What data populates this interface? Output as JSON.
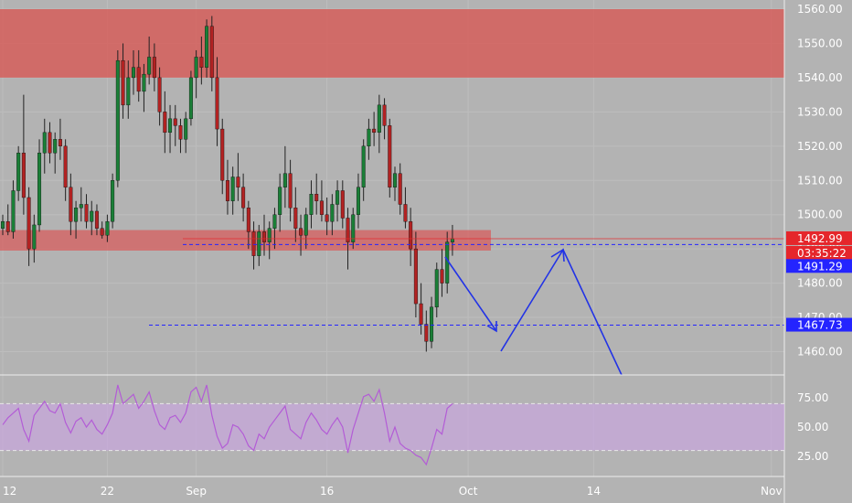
{
  "chart_data": {
    "type": "candlestick",
    "price_axis": {
      "ticks": [
        "1560.00",
        "1550.00",
        "1540.00",
        "1530.00",
        "1520.00",
        "1510.00",
        "1500.00",
        "1490.00",
        "1480.00",
        "1470.00",
        "1460.00"
      ],
      "ylim": [
        1456,
        1561
      ]
    },
    "time_axis": {
      "labels": [
        {
          "text": "12",
          "index": 0
        },
        {
          "text": "22",
          "index": 20
        },
        {
          "text": "Sep",
          "index": 37
        },
        {
          "text": "16",
          "index": 62
        },
        {
          "text": "Oct",
          "index": 89
        },
        {
          "text": "14",
          "index": 113
        },
        {
          "text": "Nov",
          "index": 147
        }
      ]
    },
    "candles": [
      [
        1496,
        1500,
        1494,
        1498
      ],
      [
        1498,
        1503,
        1494,
        1495
      ],
      [
        1495,
        1510,
        1493,
        1507
      ],
      [
        1507,
        1520,
        1504,
        1518
      ],
      [
        1518,
        1535,
        1500,
        1505
      ],
      [
        1505,
        1508,
        1485,
        1490
      ],
      [
        1490,
        1500,
        1486,
        1497
      ],
      [
        1497,
        1522,
        1495,
        1518
      ],
      [
        1518,
        1528,
        1512,
        1524
      ],
      [
        1524,
        1527,
        1515,
        1518
      ],
      [
        1518,
        1524,
        1512,
        1522
      ],
      [
        1522,
        1528,
        1516,
        1520
      ],
      [
        1520,
        1522,
        1504,
        1508
      ],
      [
        1508,
        1512,
        1494,
        1498
      ],
      [
        1498,
        1504,
        1493,
        1502
      ],
      [
        1502,
        1508,
        1498,
        1503
      ],
      [
        1503,
        1506,
        1496,
        1498
      ],
      [
        1498,
        1504,
        1494,
        1501
      ],
      [
        1501,
        1503,
        1494,
        1496
      ],
      [
        1496,
        1498,
        1493,
        1494
      ],
      [
        1494,
        1500,
        1492,
        1498
      ],
      [
        1498,
        1512,
        1496,
        1510
      ],
      [
        1510,
        1548,
        1508,
        1545
      ],
      [
        1545,
        1550,
        1528,
        1532
      ],
      [
        1532,
        1545,
        1528,
        1540
      ],
      [
        1540,
        1548,
        1535,
        1543
      ],
      [
        1543,
        1548,
        1533,
        1536
      ],
      [
        1536,
        1544,
        1530,
        1541
      ],
      [
        1541,
        1552,
        1538,
        1546
      ],
      [
        1546,
        1550,
        1536,
        1540
      ],
      [
        1540,
        1543,
        1526,
        1530
      ],
      [
        1530,
        1536,
        1518,
        1524
      ],
      [
        1524,
        1532,
        1518,
        1528
      ],
      [
        1528,
        1532,
        1520,
        1526
      ],
      [
        1526,
        1528,
        1518,
        1522
      ],
      [
        1522,
        1530,
        1518,
        1528
      ],
      [
        1528,
        1542,
        1526,
        1540
      ],
      [
        1540,
        1548,
        1534,
        1546
      ],
      [
        1546,
        1552,
        1538,
        1543
      ],
      [
        1543,
        1557,
        1540,
        1555
      ],
      [
        1555,
        1558,
        1536,
        1540
      ],
      [
        1540,
        1546,
        1520,
        1525
      ],
      [
        1525,
        1528,
        1506,
        1510
      ],
      [
        1510,
        1516,
        1500,
        1504
      ],
      [
        1504,
        1514,
        1500,
        1511
      ],
      [
        1511,
        1518,
        1504,
        1508
      ],
      [
        1508,
        1512,
        1498,
        1502
      ],
      [
        1502,
        1504,
        1490,
        1495
      ],
      [
        1495,
        1498,
        1484,
        1488
      ],
      [
        1488,
        1497,
        1485,
        1495
      ],
      [
        1495,
        1500,
        1488,
        1492
      ],
      [
        1492,
        1498,
        1487,
        1496
      ],
      [
        1496,
        1502,
        1490,
        1500
      ],
      [
        1500,
        1512,
        1495,
        1508
      ],
      [
        1508,
        1520,
        1502,
        1512
      ],
      [
        1512,
        1516,
        1498,
        1502
      ],
      [
        1502,
        1508,
        1492,
        1496
      ],
      [
        1496,
        1500,
        1488,
        1494
      ],
      [
        1494,
        1502,
        1490,
        1500
      ],
      [
        1500,
        1510,
        1496,
        1506
      ],
      [
        1506,
        1512,
        1500,
        1504
      ],
      [
        1504,
        1510,
        1498,
        1500
      ],
      [
        1500,
        1505,
        1494,
        1498
      ],
      [
        1498,
        1506,
        1494,
        1503
      ],
      [
        1503,
        1510,
        1498,
        1507
      ],
      [
        1507,
        1510,
        1496,
        1499
      ],
      [
        1499,
        1502,
        1484,
        1492
      ],
      [
        1492,
        1502,
        1490,
        1500
      ],
      [
        1500,
        1512,
        1496,
        1508
      ],
      [
        1508,
        1522,
        1504,
        1520
      ],
      [
        1520,
        1528,
        1516,
        1525
      ],
      [
        1525,
        1530,
        1520,
        1524
      ],
      [
        1524,
        1535,
        1518,
        1532
      ],
      [
        1532,
        1534,
        1522,
        1526
      ],
      [
        1526,
        1528,
        1505,
        1508
      ],
      [
        1508,
        1514,
        1504,
        1512
      ],
      [
        1512,
        1515,
        1500,
        1503
      ],
      [
        1503,
        1508,
        1496,
        1498
      ],
      [
        1498,
        1502,
        1485,
        1490
      ],
      [
        1490,
        1495,
        1470,
        1474
      ],
      [
        1474,
        1480,
        1465,
        1468
      ],
      [
        1468,
        1472,
        1460,
        1463
      ],
      [
        1463,
        1476,
        1461,
        1473
      ],
      [
        1473,
        1486,
        1470,
        1484
      ],
      [
        1484,
        1490,
        1476,
        1480
      ],
      [
        1480,
        1495,
        1477,
        1492
      ],
      [
        1492,
        1497,
        1488,
        1493
      ]
    ],
    "rsi": [
      52,
      58,
      62,
      66,
      48,
      38,
      60,
      66,
      72,
      64,
      62,
      70,
      54,
      45,
      55,
      58,
      50,
      56,
      48,
      44,
      52,
      62,
      86,
      70,
      74,
      78,
      66,
      72,
      80,
      64,
      52,
      48,
      58,
      60,
      54,
      62,
      80,
      84,
      72,
      86,
      60,
      42,
      32,
      36,
      52,
      50,
      44,
      34,
      30,
      44,
      40,
      50,
      56,
      62,
      68,
      48,
      44,
      40,
      54,
      62,
      56,
      48,
      44,
      52,
      58,
      50,
      28,
      48,
      62,
      76,
      78,
      72,
      82,
      62,
      38,
      50,
      36,
      32,
      30,
      26,
      24,
      18,
      32,
      48,
      44,
      66,
      70
    ],
    "rsi_axis": {
      "ticks": [
        "75.00",
        "50.00",
        "25.00"
      ]
    },
    "zones": [
      {
        "from": 1540,
        "to": 1560,
        "color": "#d9534f"
      },
      {
        "from": 1489.5,
        "to": 1495.5,
        "color": "#e04848"
      }
    ],
    "price_badges": [
      {
        "value": "1492.99",
        "bg": "#e5262b",
        "fg": "#ffffff"
      },
      {
        "value": "03:35:22",
        "bg": "#e5262b",
        "fg": "#ffffff"
      },
      {
        "value": "1491.29",
        "bg": "#2424ff",
        "fg": "#ffffff"
      },
      {
        "value": "1467.73",
        "bg": "#2424ff",
        "fg": "#ffffff"
      }
    ],
    "colors": {
      "up": "#1a7f37",
      "down": "#b22222",
      "wick": "#222222",
      "rsi_line": "#b35cd6",
      "rsi_band": "#c9a6de",
      "projection": "#2233e6"
    },
    "grid": true
  }
}
